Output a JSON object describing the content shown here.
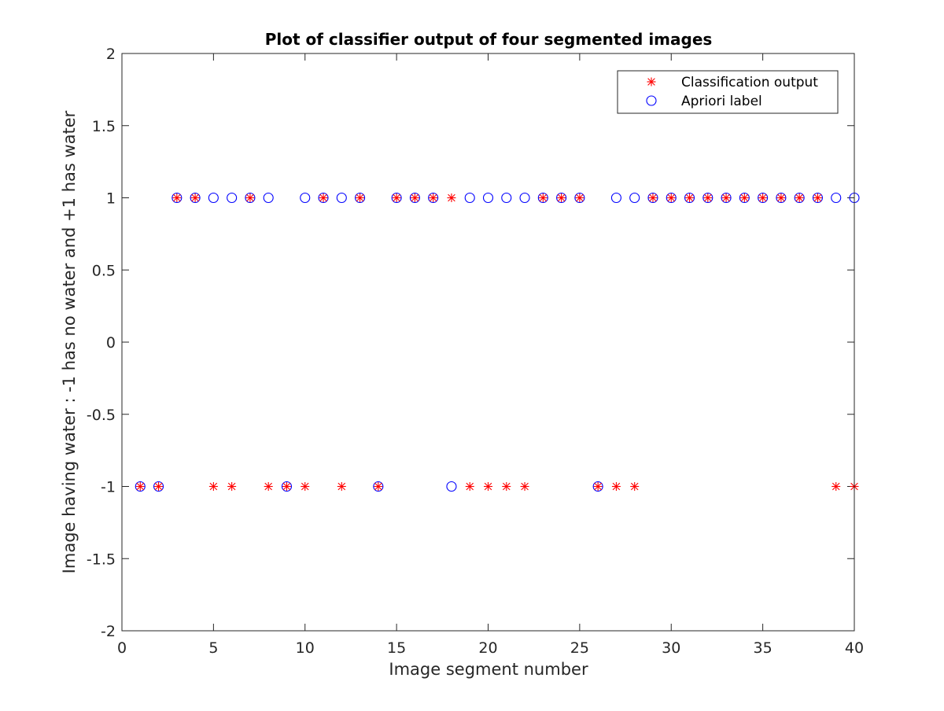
{
  "chart_data": {
    "type": "scatter",
    "title": "Plot of classifier output of four segmented images",
    "xlabel": "Image segment number",
    "ylabel": "Image having water : -1 has no water and +1 has water",
    "xlim": [
      0,
      40
    ],
    "ylim": [
      -2,
      2
    ],
    "xticks": [
      0,
      5,
      10,
      15,
      20,
      25,
      30,
      35,
      40
    ],
    "yticks": [
      -2,
      -1.5,
      -1,
      -0.5,
      0,
      0.5,
      1,
      1.5,
      2
    ],
    "grid": false,
    "legend_position": "top-right",
    "x": [
      1,
      2,
      3,
      4,
      5,
      6,
      7,
      8,
      9,
      10,
      11,
      12,
      13,
      14,
      15,
      16,
      17,
      18,
      19,
      20,
      21,
      22,
      23,
      24,
      25,
      26,
      27,
      28,
      29,
      30,
      31,
      32,
      33,
      34,
      35,
      36,
      37,
      38,
      39,
      40
    ],
    "series": [
      {
        "name": "Classification output",
        "marker": "asterisk",
        "color": "#ff0000",
        "values": [
          -1,
          -1,
          1,
          1,
          -1,
          -1,
          1,
          -1,
          -1,
          -1,
          1,
          -1,
          1,
          -1,
          1,
          1,
          1,
          1,
          -1,
          -1,
          -1,
          -1,
          1,
          1,
          1,
          -1,
          -1,
          -1,
          1,
          1,
          1,
          1,
          1,
          1,
          1,
          1,
          1,
          1,
          -1,
          -1
        ]
      },
      {
        "name": "Apriori label",
        "marker": "circle",
        "color": "#0000ff",
        "values": [
          -1,
          -1,
          1,
          1,
          1,
          1,
          1,
          1,
          -1,
          1,
          1,
          1,
          1,
          -1,
          1,
          1,
          1,
          -1,
          1,
          1,
          1,
          1,
          1,
          1,
          1,
          -1,
          1,
          1,
          1,
          1,
          1,
          1,
          1,
          1,
          1,
          1,
          1,
          1,
          1,
          1
        ]
      }
    ]
  }
}
